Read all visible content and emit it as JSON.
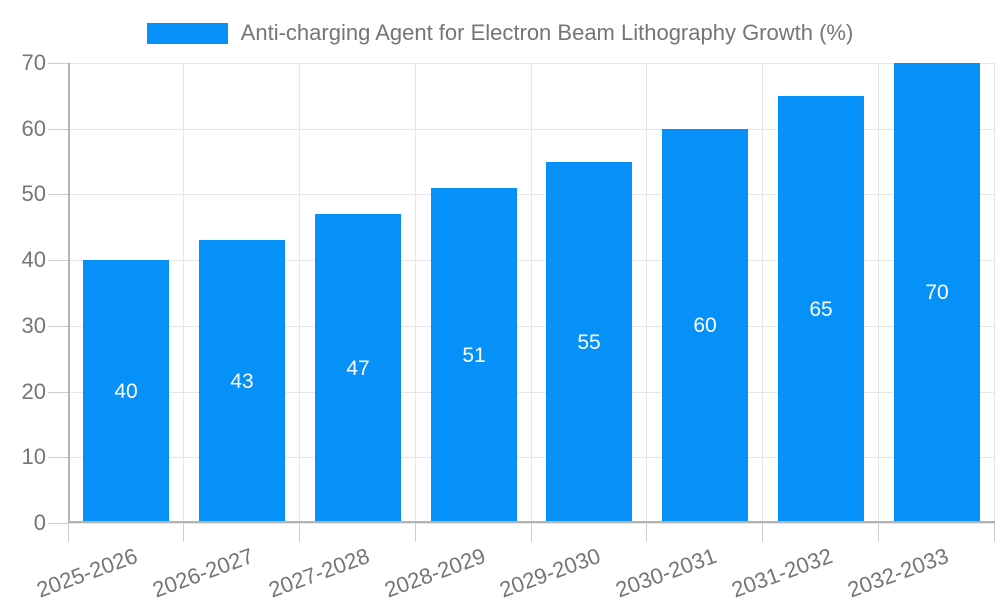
{
  "chart_data": {
    "type": "bar",
    "title": "Anti-charging Agent for Electron Beam Lithography Growth (%)",
    "categories": [
      "2025-2026",
      "2026-2027",
      "2027-2028",
      "2028-2029",
      "2029-2030",
      "2030-2031",
      "2031-2032",
      "2032-2033"
    ],
    "values": [
      40,
      43,
      47,
      51,
      55,
      60,
      65,
      70
    ],
    "xlabel": "",
    "ylabel": "",
    "ylim": [
      0,
      70
    ],
    "y_ticks": [
      0,
      10,
      20,
      30,
      40,
      50,
      60,
      70
    ],
    "grid": "on",
    "legend_position": "top-center",
    "value_label_position": "inside-center",
    "colors": {
      "bar": "#0591f8",
      "bar_label": "#ffffff",
      "axis_text": "#757575",
      "grid_line": "#e6e6e6",
      "tick": "#cccccc",
      "axis_line": "#b3b3b3",
      "background": "#ffffff"
    }
  }
}
